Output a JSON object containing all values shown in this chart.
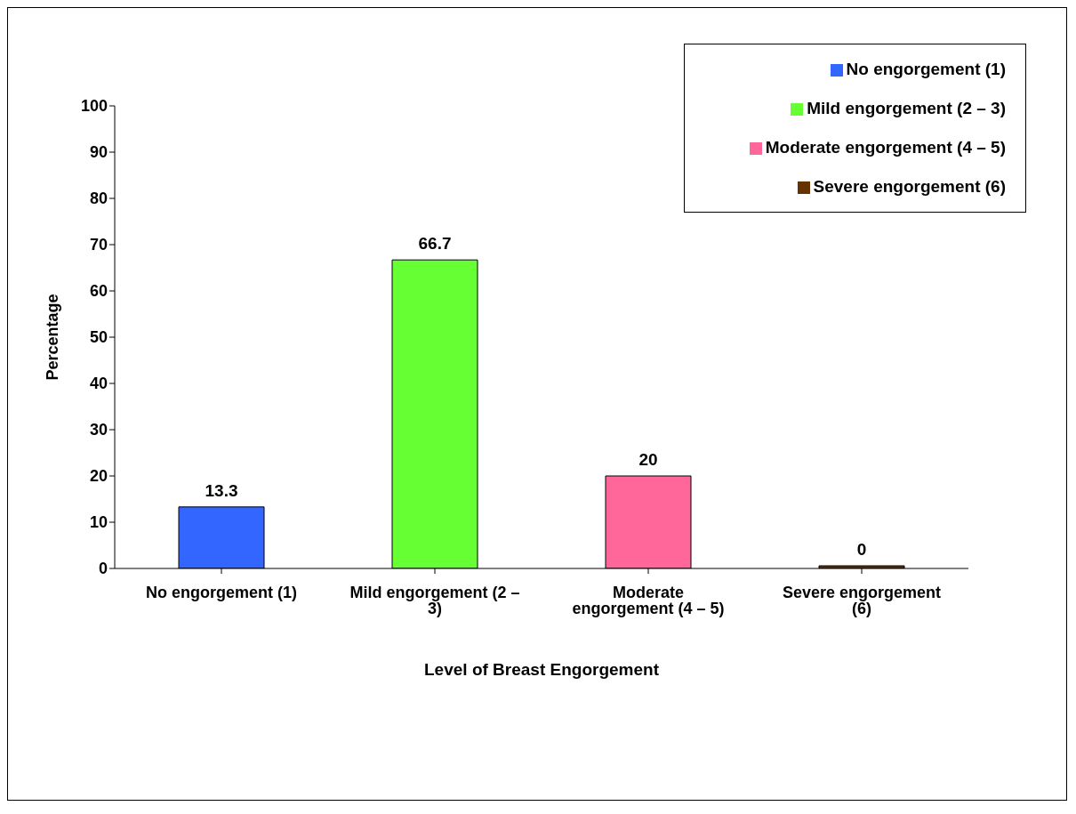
{
  "chart_data": {
    "type": "bar",
    "xlabel": "Level of Breast Engorgement",
    "ylabel": "Percentage",
    "categories": [
      "No engorgement (1)",
      "Mild engorgement (2 – 3)",
      "Moderate engorgement (4 – 5)",
      "Severe engorgement (6)"
    ],
    "series": [
      {
        "name": "No engorgement (1)",
        "color": "#3366ff",
        "values": [
          13.3,
          null,
          null,
          null
        ]
      },
      {
        "name": "Mild engorgement (2 – 3)",
        "color": "#66ff33",
        "values": [
          null,
          66.7,
          null,
          null
        ]
      },
      {
        "name": "Moderate engorgement (4 – 5)",
        "color": "#ff6699",
        "values": [
          null,
          null,
          20,
          null
        ]
      },
      {
        "name": "Severe engorgement (6)",
        "color": "#663300",
        "values": [
          null,
          null,
          null,
          0
        ]
      }
    ],
    "stacked": true,
    "ylim": [
      0,
      100
    ],
    "yticks": [
      0,
      10,
      20,
      30,
      40,
      50,
      60,
      70,
      80,
      90,
      100
    ],
    "data_labels": true,
    "legend": "top right",
    "grid": false
  }
}
